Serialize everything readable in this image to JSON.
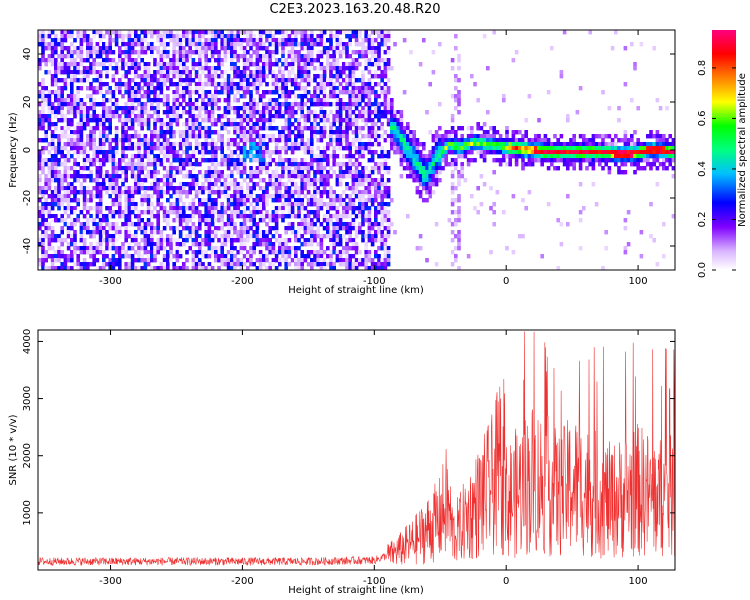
{
  "page": {
    "title": "C2E3.2023.163.20.48.R20"
  },
  "chart_data": [
    {
      "type": "heatmap",
      "title": "",
      "xlabel": "Height of straight line (km)",
      "ylabel": "Frequency (Hz)",
      "xlim": [
        -355,
        128
      ],
      "ylim": [
        -50,
        50
      ],
      "xticks": [
        -300,
        -200,
        -100,
        0,
        100
      ],
      "yticks": [
        -40,
        -20,
        0,
        20,
        40
      ],
      "colorbar": {
        "label": "Normalized spectral amplitude",
        "range": [
          0.0,
          0.95
        ],
        "ticks": [
          0.0,
          0.2,
          0.4,
          0.6,
          0.8
        ],
        "colormap": [
          "#ffffff",
          "#7f00ff",
          "#0000ff",
          "#00bfff",
          "#00ff80",
          "#00ff00",
          "#ffff00",
          "#ff8000",
          "#ff0000",
          "#ff0080"
        ]
      },
      "regions": [
        {
          "description_x": [
            -355,
            -90
          ],
          "freq": [
            -50,
            50
          ],
          "typical_amplitude": 0.15
        },
        {
          "description_x": [
            -90,
            -55
          ],
          "freq": [
            -15,
            10
          ],
          "typical_amplitude": 0.35
        },
        {
          "description_x": [
            -55,
            128
          ],
          "freq": [
            -5,
            5
          ],
          "typical_amplitude": 0.8
        }
      ],
      "ridge": {
        "x": [
          -90,
          -80,
          -70,
          -62,
          -55,
          -45,
          -35,
          -25,
          -15,
          0,
          15,
          30,
          50,
          70,
          90,
          110,
          128
        ],
        "y": [
          12,
          5,
          -4,
          -10,
          -3,
          3,
          2,
          4,
          3,
          2,
          1,
          0,
          0,
          0,
          -1,
          1,
          0
        ]
      },
      "grid": false
    },
    {
      "type": "line",
      "title": "",
      "xlabel": "Height of straight line (km)",
      "ylabel": "SNR (10 * v/v)",
      "xlim": [
        -355,
        128
      ],
      "ylim": [
        0,
        4200
      ],
      "xticks": [
        -300,
        -200,
        -100,
        0,
        100
      ],
      "yticks": [
        1000,
        2000,
        3000,
        4000
      ],
      "color": "#ee3030",
      "series": [
        {
          "x": [
            -355,
            -300,
            -250,
            -200,
            -150,
            -100,
            -85,
            -70,
            -60,
            -50,
            -45,
            -40,
            -30,
            -20,
            -10,
            -5,
            0,
            10,
            20,
            30,
            40,
            50,
            60,
            70,
            80,
            90,
            100,
            110,
            120,
            128
          ],
          "y": [
            150,
            150,
            150,
            150,
            150,
            170,
            300,
            500,
            700,
            900,
            1200,
            600,
            900,
            1200,
            1500,
            1800,
            1200,
            1400,
            1600,
            1500,
            1300,
            1500,
            1400,
            1300,
            1200,
            1300,
            1400,
            1300,
            1250,
            1300
          ]
        }
      ],
      "grid": false
    }
  ]
}
